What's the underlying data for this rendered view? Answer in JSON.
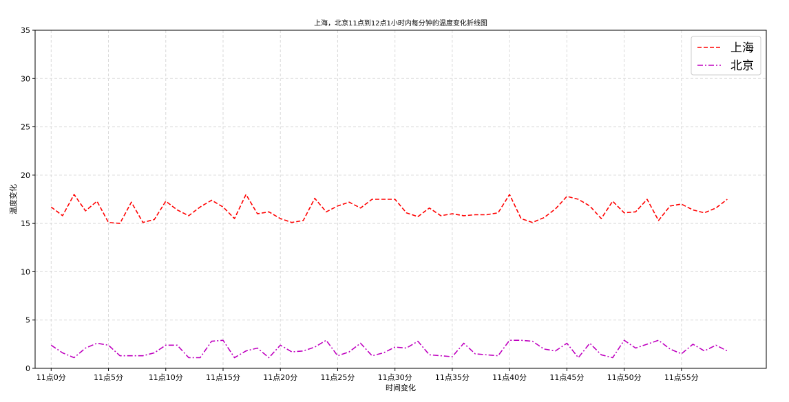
{
  "chart_data": {
    "type": "line",
    "title": "上海，北京11点到12点1小时内每分钟的温度变化折线图",
    "xlabel": "时间变化",
    "ylabel": "温度变化",
    "x": [
      0,
      1,
      2,
      3,
      4,
      5,
      6,
      7,
      8,
      9,
      10,
      11,
      12,
      13,
      14,
      15,
      16,
      17,
      18,
      19,
      20,
      21,
      22,
      23,
      24,
      25,
      26,
      27,
      28,
      29,
      30,
      31,
      32,
      33,
      34,
      35,
      36,
      37,
      38,
      39,
      40,
      41,
      42,
      43,
      44,
      45,
      46,
      47,
      48,
      49,
      50,
      51,
      52,
      53,
      54,
      55,
      56,
      57,
      58,
      59
    ],
    "xlim": [
      -1.4,
      62.4
    ],
    "ylim": [
      0,
      35
    ],
    "xticks": [
      {
        "value": 0,
        "label": "11点0分"
      },
      {
        "value": 5,
        "label": "11点5分"
      },
      {
        "value": 10,
        "label": "11点10分"
      },
      {
        "value": 15,
        "label": "11点15分"
      },
      {
        "value": 20,
        "label": "11点20分"
      },
      {
        "value": 25,
        "label": "11点25分"
      },
      {
        "value": 30,
        "label": "11点30分"
      },
      {
        "value": 35,
        "label": "11点35分"
      },
      {
        "value": 40,
        "label": "11点40分"
      },
      {
        "value": 45,
        "label": "11点45分"
      },
      {
        "value": 50,
        "label": "11点50分"
      },
      {
        "value": 55,
        "label": "11点55分"
      }
    ],
    "yticks": [
      0,
      5,
      10,
      15,
      20,
      25,
      30,
      35
    ],
    "grid": true,
    "legend_position": "top-right",
    "series": [
      {
        "name": "上海",
        "color": "#ff0000",
        "style": "dashed",
        "values": [
          16.7,
          15.8,
          18.0,
          16.3,
          17.3,
          15.1,
          15.0,
          17.2,
          15.1,
          15.4,
          17.3,
          16.4,
          15.8,
          16.7,
          17.4,
          16.7,
          15.5,
          18.0,
          16.0,
          16.2,
          15.5,
          15.1,
          15.3,
          17.6,
          16.2,
          16.8,
          17.2,
          16.6,
          17.5,
          17.5,
          17.5,
          16.1,
          15.7,
          16.6,
          15.8,
          16.0,
          15.8,
          15.9,
          15.9,
          16.1,
          18.0,
          15.5,
          15.1,
          15.6,
          16.5,
          17.8,
          17.5,
          16.8,
          15.5,
          17.3,
          16.1,
          16.2,
          17.5,
          15.3,
          16.8,
          17.0,
          16.4,
          16.1,
          16.6,
          17.5
        ]
      },
      {
        "name": "北京",
        "color": "#bf00bf",
        "style": "dashdot",
        "values": [
          2.4,
          1.6,
          1.1,
          2.1,
          2.6,
          2.4,
          1.3,
          1.3,
          1.3,
          1.6,
          2.4,
          2.4,
          1.1,
          1.1,
          2.8,
          2.9,
          1.1,
          1.8,
          2.1,
          1.1,
          2.4,
          1.7,
          1.8,
          2.2,
          2.9,
          1.3,
          1.7,
          2.6,
          1.3,
          1.6,
          2.2,
          2.1,
          2.8,
          1.4,
          1.3,
          1.2,
          2.6,
          1.5,
          1.4,
          1.3,
          2.9,
          2.9,
          2.8,
          2.0,
          1.8,
          2.6,
          1.1,
          2.6,
          1.4,
          1.1,
          2.9,
          2.1,
          2.5,
          2.9,
          2.0,
          1.5,
          2.5,
          1.8,
          2.4,
          1.8
        ]
      }
    ]
  }
}
